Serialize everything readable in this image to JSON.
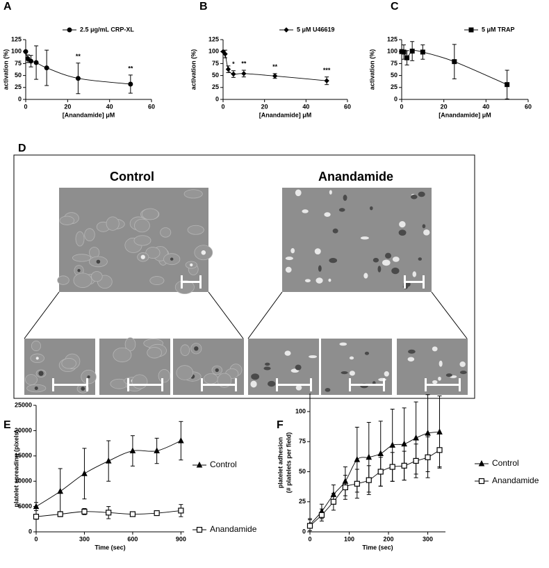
{
  "chart_data": [
    {
      "type": "scatter",
      "label": "A",
      "xlabel": "[Anandamide] μM",
      "ylabel": "activation (%)",
      "legend": "upper center",
      "x": [
        0,
        1,
        2.5,
        5,
        10,
        25,
        50
      ],
      "xlim": [
        0,
        60
      ],
      "xticks": [
        0,
        20,
        40,
        60
      ],
      "ylim": [
        0,
        125
      ],
      "yticks": [
        0,
        25,
        50,
        75,
        100,
        125
      ],
      "series": [
        {
          "name": "2.5 μg/mL CRP-XL",
          "color": "#000000",
          "marker": "circle",
          "values": [
            100,
            85,
            80,
            77,
            66,
            44,
            32
          ],
          "errors": [
            0,
            8,
            12,
            35,
            37,
            32,
            19
          ]
        }
      ],
      "annotations": [
        {
          "text": "**",
          "x": 25
        },
        {
          "text": "**",
          "x": 50
        }
      ]
    },
    {
      "type": "scatter",
      "label": "B",
      "xlabel": "[Anandamide] μM",
      "ylabel": "activation (%)",
      "legend": "upper center",
      "x": [
        0,
        1,
        2.5,
        5,
        10,
        25,
        50
      ],
      "xlim": [
        0,
        60
      ],
      "xticks": [
        0,
        20,
        40,
        60
      ],
      "ylim": [
        0,
        125
      ],
      "yticks": [
        0,
        25,
        50,
        75,
        100,
        125
      ],
      "series": [
        {
          "name": "5 μM U46619",
          "color": "#000000",
          "marker": "diamond",
          "values": [
            100,
            95,
            63,
            53,
            54,
            49,
            39
          ],
          "errors": [
            0,
            8,
            7,
            7,
            7,
            5,
            8
          ]
        }
      ],
      "annotations": [
        {
          "text": "*",
          "x": 5
        },
        {
          "text": "**",
          "x": 10
        },
        {
          "text": "**",
          "x": 25
        },
        {
          "text": "***",
          "x": 50
        }
      ]
    },
    {
      "type": "scatter",
      "label": "C",
      "xlabel": "[Anandamide] μM",
      "ylabel": "activation (%)",
      "legend": "upper center",
      "x": [
        0,
        1,
        2.5,
        5,
        10,
        25,
        50
      ],
      "xlim": [
        0,
        60
      ],
      "xticks": [
        0,
        20,
        40,
        60
      ],
      "ylim": [
        0,
        125
      ],
      "yticks": [
        0,
        25,
        50,
        75,
        100,
        125
      ],
      "series": [
        {
          "name": "5 μM TRAP",
          "color": "#000000",
          "marker": "square",
          "values": [
            100,
            99,
            87,
            101,
            99,
            79,
            31
          ],
          "errors": [
            0,
            15,
            15,
            20,
            15,
            36,
            30
          ]
        }
      ],
      "annotations": []
    },
    {
      "type": "scatter",
      "label": "E",
      "xlabel": "Time (sec)",
      "ylabel": [
        "platelet spreading (pixels)"
      ],
      "legend": "right outside",
      "x": [
        0,
        150,
        300,
        450,
        600,
        750,
        900
      ],
      "xlim": [
        0,
        920
      ],
      "xticks": [
        0,
        300,
        600,
        900
      ],
      "ylim": [
        0,
        25000
      ],
      "yticks": [
        0,
        5000,
        10000,
        15000,
        20000,
        25000
      ],
      "series": [
        {
          "name": "Control",
          "color": "#000000",
          "marker": "triangle",
          "values": [
            5000,
            8000,
            11500,
            14000,
            16000,
            16000,
            18000
          ],
          "errors": [
            800,
            4500,
            5000,
            4000,
            3000,
            2500,
            3800
          ]
        },
        {
          "name": "Anandamide",
          "color": "#000000",
          "marker": "open-square",
          "values": [
            3000,
            3500,
            4000,
            3800,
            3500,
            3700,
            4200
          ],
          "errors": [
            500,
            500,
            600,
            1200,
            400,
            400,
            1200
          ]
        }
      ],
      "annotations": []
    },
    {
      "type": "scatter",
      "label": "F",
      "xlabel": "Time (sec)",
      "ylabel": [
        "platelet adhesion",
        "(# platelets per field)"
      ],
      "legend": "right outside",
      "x": [
        0,
        30,
        60,
        90,
        120,
        150,
        180,
        210,
        240,
        270,
        300,
        330
      ],
      "xlim": [
        0,
        345
      ],
      "xticks": [
        0,
        100,
        200,
        300
      ],
      "ylim": [
        0,
        115
      ],
      "yticks": [
        0,
        25,
        50,
        75,
        100
      ],
      "series": [
        {
          "name": "Control",
          "color": "#000000",
          "marker": "triangle",
          "values": [
            6,
            17,
            31,
            42,
            60,
            62,
            65,
            72,
            73,
            78,
            82,
            83
          ],
          "errors": [
            5,
            6,
            8,
            12,
            27,
            29,
            27,
            30,
            30,
            30,
            32,
            30
          ]
        },
        {
          "name": "Anandamide",
          "color": "#000000",
          "marker": "open-square",
          "values": [
            5,
            14,
            25,
            37,
            40,
            43,
            50,
            54,
            55,
            59,
            62,
            68
          ],
          "errors": [
            5,
            5,
            7,
            10,
            12,
            12,
            12,
            12,
            12,
            14,
            17,
            14
          ]
        }
      ],
      "annotations": []
    }
  ],
  "panel_d": {
    "label": "D",
    "titles": [
      "Control",
      "Anandamide"
    ]
  }
}
